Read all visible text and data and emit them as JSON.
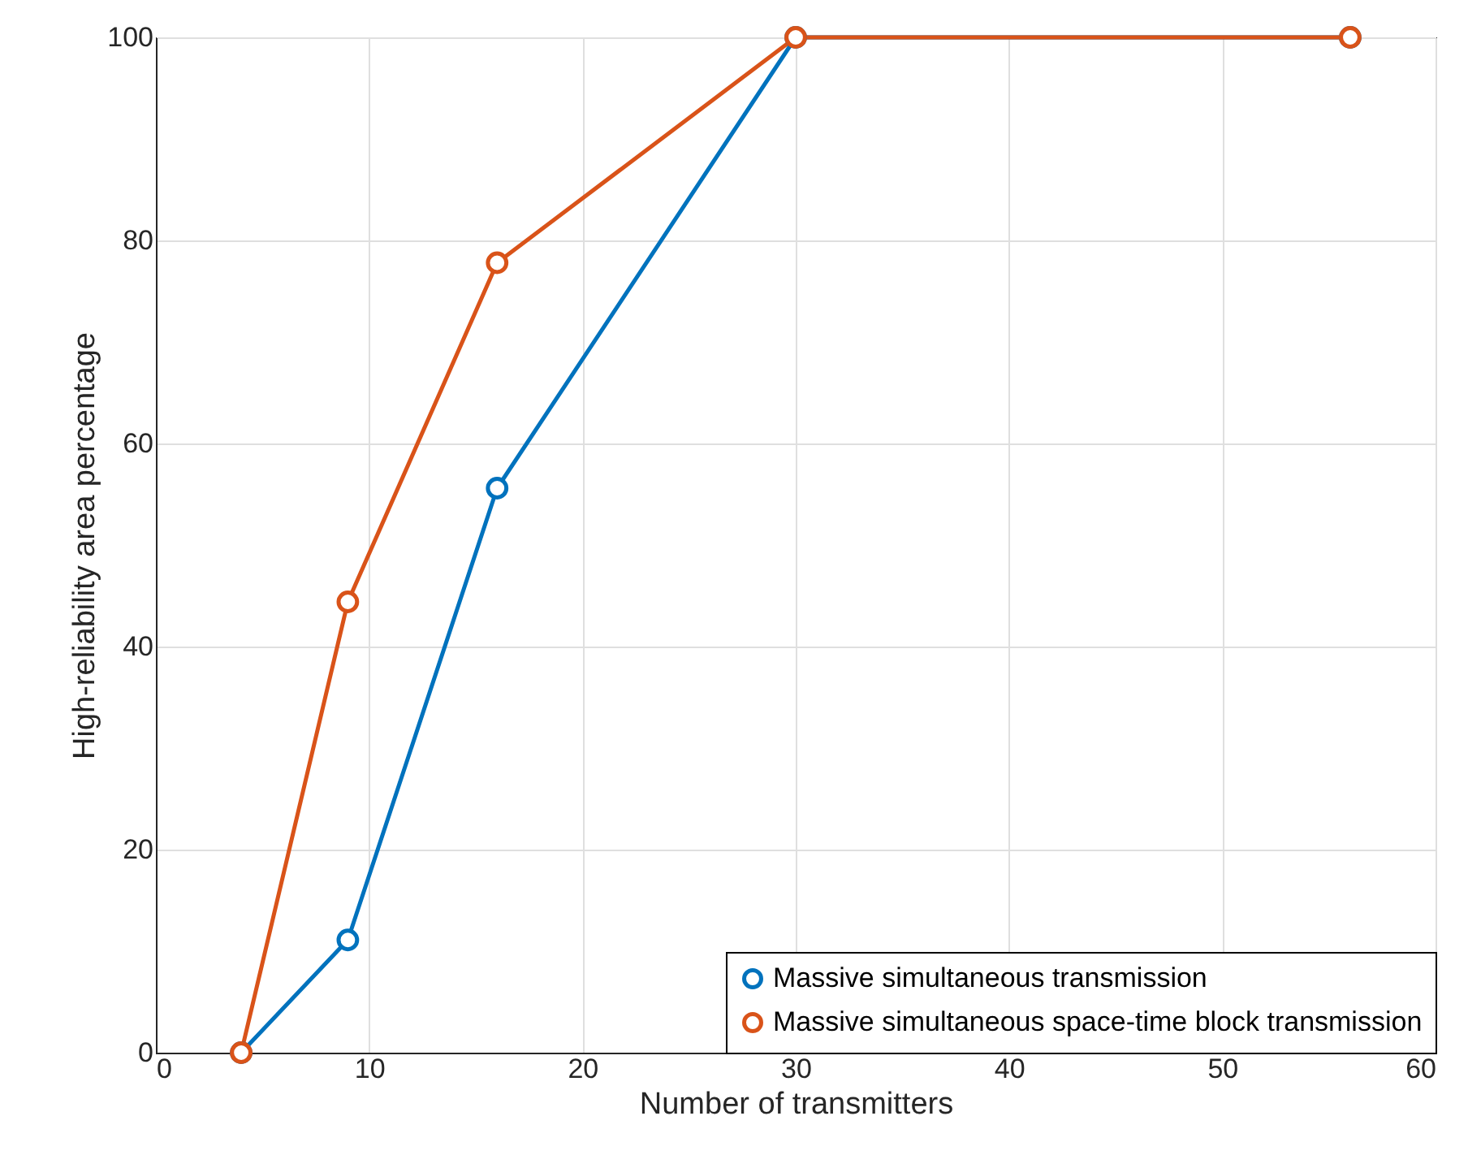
{
  "chart_data": {
    "type": "line",
    "xlabel": "Number of transmitters",
    "ylabel": "High-reliability area percentage",
    "x": [
      4,
      9,
      16,
      30,
      56
    ],
    "series": [
      {
        "name": "Massive simultaneous transmission",
        "color": "#0072bd",
        "values": [
          0,
          11.1,
          55.6,
          100,
          100
        ]
      },
      {
        "name": "Massive simultaneous space-time block transmission",
        "color": "#d95319",
        "values": [
          0,
          44.4,
          77.8,
          100,
          100
        ]
      }
    ],
    "xlim": [
      0,
      60
    ],
    "xticks": [
      0,
      10,
      20,
      30,
      40,
      50,
      60
    ],
    "ylim": [
      0,
      100
    ],
    "yticks": [
      0,
      20,
      40,
      60,
      80,
      100
    ],
    "grid": true,
    "legend": "bottom right",
    "marker": "circle",
    "line_style": "solid"
  }
}
